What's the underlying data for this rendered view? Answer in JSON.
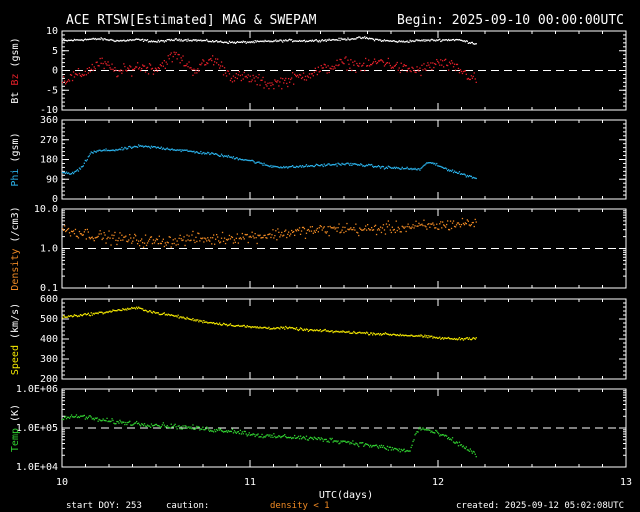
{
  "title_left": "ACE RTSW[Estimated] MAG & SWEPAM",
  "title_right": "Begin: 2025-09-10 00:00:00UTC",
  "xlabel": "UTC(days)",
  "footer": {
    "start_doy": "start DOY: 253",
    "caution": "caution:",
    "density_note": "density < 1",
    "created": "created: 2025-09-12 05:02:08UTC"
  },
  "colors": {
    "background": "#000000",
    "axes": "#ffffff",
    "bt": "#ffffff",
    "bz": "#e8202a",
    "phi": "#2ab0e8",
    "density": "#f08a24",
    "speed": "#f2e600",
    "temp": "#30d030",
    "caution": "#f08a24"
  },
  "chart_data": [
    {
      "type": "scatter",
      "panel": "mag-bt-bz",
      "ylabel_parts": [
        "Bt",
        "Bz",
        "(gsm)"
      ],
      "ylim": [
        -10,
        10
      ],
      "yticks": [
        "10",
        "5",
        "0",
        "-5",
        "-10"
      ],
      "ytick_values": [
        10,
        5,
        0,
        -5,
        -10
      ],
      "dashed_ref": 0,
      "series": [
        {
          "name": "Bt",
          "color_key": "bt",
          "spread": 0.4,
          "x": [
            10.0,
            10.1,
            10.2,
            10.3,
            10.4,
            10.5,
            10.6,
            10.7,
            10.8,
            10.9,
            11.0,
            11.1,
            11.2,
            11.3,
            11.4,
            11.5,
            11.6,
            11.7,
            11.8,
            11.9,
            12.0,
            12.1,
            12.2
          ],
          "y": [
            7.5,
            7.8,
            8.0,
            7.5,
            7.8,
            7.3,
            7.8,
            7.7,
            7.4,
            7.1,
            7.2,
            7.4,
            7.6,
            7.5,
            7.7,
            7.9,
            8.3,
            7.6,
            7.3,
            7.6,
            7.7,
            7.8,
            6.8
          ]
        },
        {
          "name": "Bz",
          "color_key": "bz",
          "spread": 2.2,
          "x": [
            10.0,
            10.1,
            10.2,
            10.3,
            10.4,
            10.5,
            10.6,
            10.7,
            10.8,
            10.9,
            11.0,
            11.1,
            11.2,
            11.3,
            11.4,
            11.5,
            11.6,
            11.7,
            11.8,
            11.9,
            12.0,
            12.1,
            12.2
          ],
          "y": [
            -2.5,
            -1.0,
            2.0,
            -0.5,
            1.0,
            0.5,
            4.0,
            0.0,
            3.0,
            -1.5,
            -2.0,
            -3.5,
            -2.5,
            -1.0,
            0.5,
            2.0,
            1.0,
            2.5,
            0.5,
            0.0,
            2.0,
            0.5,
            -2.5
          ]
        }
      ]
    },
    {
      "type": "scatter",
      "panel": "phi",
      "ylabel_parts": [
        "Phi",
        "(gsm)"
      ],
      "ylim": [
        0,
        360
      ],
      "yticks": [
        "360",
        "270",
        "180",
        "90",
        "0"
      ],
      "ytick_values": [
        360,
        270,
        180,
        90,
        0
      ],
      "series": [
        {
          "name": "Phi",
          "color_key": "phi",
          "spread": 9,
          "x": [
            10.0,
            10.05,
            10.1,
            10.15,
            10.2,
            10.3,
            10.4,
            10.5,
            10.6,
            10.7,
            10.8,
            10.9,
            11.0,
            11.1,
            11.2,
            11.3,
            11.4,
            11.5,
            11.6,
            11.7,
            11.8,
            11.9,
            11.95,
            12.0,
            12.1,
            12.2
          ],
          "y": [
            120,
            115,
            140,
            210,
            220,
            225,
            240,
            235,
            225,
            215,
            205,
            190,
            175,
            150,
            145,
            150,
            155,
            160,
            155,
            145,
            140,
            135,
            170,
            150,
            120,
            95
          ]
        }
      ]
    },
    {
      "type": "scatter",
      "panel": "density",
      "ylabel_parts": [
        "Density",
        "(/cm3)"
      ],
      "yscale": "log",
      "ylim": [
        0.1,
        10.0
      ],
      "yticks": [
        "10.0",
        "1.0",
        "0.1"
      ],
      "ytick_values": [
        10.0,
        1.0,
        0.1
      ],
      "dashed_ref": 1.0,
      "series": [
        {
          "name": "Density",
          "color_key": "density",
          "spread": 0.22,
          "x": [
            10.0,
            10.1,
            10.2,
            10.3,
            10.4,
            10.5,
            10.6,
            10.7,
            10.8,
            10.9,
            11.0,
            11.1,
            11.2,
            11.3,
            11.4,
            11.5,
            11.6,
            11.7,
            11.8,
            11.9,
            12.0,
            12.1,
            12.2
          ],
          "y": [
            3.0,
            2.5,
            2.0,
            1.8,
            1.6,
            1.5,
            1.6,
            1.8,
            1.7,
            1.9,
            2.0,
            2.2,
            2.5,
            2.8,
            3.0,
            3.2,
            3.0,
            3.2,
            3.4,
            3.6,
            3.8,
            4.2,
            4.5
          ]
        }
      ]
    },
    {
      "type": "scatter",
      "panel": "speed",
      "ylabel_parts": [
        "Speed",
        "(km/s)"
      ],
      "ylim": [
        200,
        600
      ],
      "yticks": [
        "600",
        "500",
        "400",
        "300",
        "200"
      ],
      "ytick_values": [
        600,
        500,
        400,
        300,
        200
      ],
      "series": [
        {
          "name": "Speed",
          "color_key": "speed",
          "spread": 9,
          "x": [
            10.0,
            10.1,
            10.2,
            10.3,
            10.4,
            10.5,
            10.6,
            10.7,
            10.8,
            10.9,
            11.0,
            11.1,
            11.2,
            11.3,
            11.4,
            11.5,
            11.6,
            11.7,
            11.8,
            11.9,
            12.0,
            12.1,
            12.2
          ],
          "y": [
            510,
            520,
            530,
            545,
            555,
            530,
            515,
            495,
            480,
            470,
            460,
            455,
            455,
            445,
            440,
            435,
            430,
            425,
            420,
            415,
            405,
            400,
            405
          ]
        }
      ]
    },
    {
      "type": "scatter",
      "panel": "temp",
      "ylabel_parts": [
        "Temp",
        "(K)"
      ],
      "yscale": "log",
      "ylim": [
        10000,
        1000000
      ],
      "yticks": [
        "1.0E+06",
        "1.0E+05",
        "1.0E+04"
      ],
      "ytick_values": [
        1000000,
        100000,
        10000
      ],
      "dashed_ref": 100000,
      "series": [
        {
          "name": "Temp",
          "color_key": "temp",
          "spread": 0.09,
          "x": [
            10.0,
            10.1,
            10.2,
            10.3,
            10.4,
            10.5,
            10.6,
            10.7,
            10.8,
            10.9,
            11.0,
            11.1,
            11.2,
            11.3,
            11.4,
            11.5,
            11.6,
            11.7,
            11.8,
            11.85,
            11.9,
            12.0,
            12.1,
            12.2
          ],
          "y": [
            180000,
            200000,
            160000,
            140000,
            130000,
            120000,
            110000,
            100000,
            90000,
            85000,
            70000,
            60000,
            60000,
            55000,
            50000,
            45000,
            38000,
            32000,
            27000,
            25000,
            100000,
            70000,
            40000,
            20000
          ]
        }
      ]
    }
  ],
  "xaxis": {
    "xlim": [
      10,
      13
    ],
    "tick_labels": [
      "10",
      "11",
      "12",
      "13"
    ],
    "tick_values": [
      10,
      11,
      12,
      13
    ]
  }
}
